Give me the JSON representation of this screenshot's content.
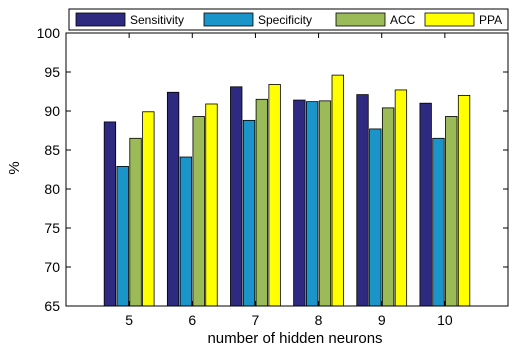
{
  "chart_data": {
    "type": "bar",
    "title": "",
    "xlabel": "number of hidden neurons",
    "ylabel": "%",
    "ylim": [
      65,
      100
    ],
    "yticks": [
      65,
      70,
      75,
      80,
      85,
      90,
      95,
      100
    ],
    "categories": [
      "5",
      "6",
      "7",
      "8",
      "9",
      "10"
    ],
    "legend_position": "top",
    "grid": false,
    "series": [
      {
        "name": "Sensitivity",
        "color": "#2e2a7f",
        "values": [
          88.6,
          92.4,
          93.1,
          91.4,
          92.1,
          91.0
        ]
      },
      {
        "name": "Specificity",
        "color": "#1b95c9",
        "values": [
          82.9,
          84.1,
          88.8,
          91.2,
          87.7,
          86.5
        ]
      },
      {
        "name": "ACC",
        "color": "#9bbb59",
        "values": [
          86.5,
          89.3,
          91.5,
          91.3,
          90.4,
          89.3
        ]
      },
      {
        "name": "PPA",
        "color": "#ffff00",
        "values": [
          89.9,
          90.9,
          93.4,
          94.6,
          92.7,
          92.0
        ]
      }
    ]
  }
}
